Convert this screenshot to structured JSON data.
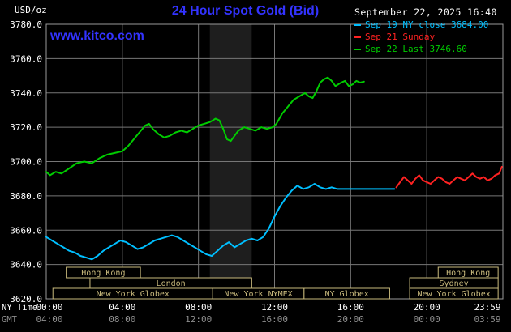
{
  "header": {
    "unit_label": "USD/oz",
    "title": "24 Hour Spot Gold (Bid)",
    "datetime": "September 22, 2025 16:40",
    "watermark": "www.kitco.com"
  },
  "colors": {
    "title_blue": "#3333ff",
    "cyan": "#00bfff",
    "red": "#ff2222",
    "green": "#00cc00",
    "white": "#ffffff",
    "gmt_gray": "#8f8f8f",
    "grid": "#777777",
    "border": "#9a9a9a",
    "session_tan": "#c9ba7d",
    "band": "#1e1e1e",
    "background": "#000000"
  },
  "legend": {
    "items": [
      {
        "label": "Sep 19 NY close 3684.00",
        "color": "#00bfff"
      },
      {
        "label": "Sep 21 Sunday",
        "color": "#ff2222"
      },
      {
        "label": "Sep 22 Last 3746.60",
        "color": "#00cc00"
      }
    ]
  },
  "chart_data": {
    "type": "line",
    "title": "24 Hour Spot Gold (Bid)",
    "ylabel": "USD/oz",
    "ylim": [
      3620,
      3780
    ],
    "xlim_hours": [
      0,
      24
    ],
    "grid": true,
    "legend_position": "top-right",
    "y_ticks": [
      {
        "value": 3780,
        "label": "3780.0"
      },
      {
        "value": 3760,
        "label": "3760.0"
      },
      {
        "value": 3740,
        "label": "3740.0"
      },
      {
        "value": 3720,
        "label": "3720.0"
      },
      {
        "value": 3700,
        "label": "3700.0"
      },
      {
        "value": 3680,
        "label": "3680.0"
      },
      {
        "value": 3660,
        "label": "3660.0"
      },
      {
        "value": 3640,
        "label": "3640.0"
      },
      {
        "value": 3620,
        "label": "3620.0"
      }
    ],
    "x_gridline_hours": [
      4,
      8,
      12,
      16,
      20
    ],
    "x_axis_rows": [
      {
        "name": "NY Time",
        "color": "#ffffff",
        "ticks": [
          {
            "hour": 0,
            "label": "00:00"
          },
          {
            "hour": 4,
            "label": "04:00"
          },
          {
            "hour": 8,
            "label": "08:00"
          },
          {
            "hour": 12,
            "label": "12:00"
          },
          {
            "hour": 16,
            "label": "16:00"
          },
          {
            "hour": 20,
            "label": "20:00"
          },
          {
            "hour": 23.98,
            "label": "23:59"
          }
        ]
      },
      {
        "name": "GMT",
        "color": "#8f8f8f",
        "ticks": [
          {
            "hour": 0,
            "label": "04:00"
          },
          {
            "hour": 4,
            "label": "08:00"
          },
          {
            "hour": 8,
            "label": "12:00"
          },
          {
            "hour": 12,
            "label": "16:00"
          },
          {
            "hour": 16,
            "label": "20:00"
          },
          {
            "hour": 20,
            "label": "00:00"
          },
          {
            "hour": 23.98,
            "label": "03:59"
          }
        ]
      }
    ],
    "shaded_band": {
      "from_hour": 8.6,
      "to_hour": 10.8,
      "color": "#1e1e1e"
    },
    "series": [
      {
        "id": "sep19-ny-close",
        "name": "Sep 19 NY close 3684.00",
        "color": "#00bfff",
        "points": [
          [
            0,
            3656
          ],
          [
            0.3,
            3654
          ],
          [
            0.6,
            3652
          ],
          [
            0.9,
            3650
          ],
          [
            1.2,
            3648
          ],
          [
            1.5,
            3647
          ],
          [
            1.8,
            3645
          ],
          [
            2.1,
            3644
          ],
          [
            2.4,
            3643
          ],
          [
            2.7,
            3645
          ],
          [
            3,
            3648
          ],
          [
            3.3,
            3650
          ],
          [
            3.6,
            3652
          ],
          [
            3.9,
            3654
          ],
          [
            4.2,
            3653
          ],
          [
            4.5,
            3651
          ],
          [
            4.8,
            3649
          ],
          [
            5.1,
            3650
          ],
          [
            5.4,
            3652
          ],
          [
            5.7,
            3654
          ],
          [
            6,
            3655
          ],
          [
            6.3,
            3656
          ],
          [
            6.6,
            3657
          ],
          [
            6.9,
            3656
          ],
          [
            7.2,
            3654
          ],
          [
            7.5,
            3652
          ],
          [
            7.8,
            3650
          ],
          [
            8.1,
            3648
          ],
          [
            8.4,
            3646
          ],
          [
            8.7,
            3645
          ],
          [
            9,
            3648
          ],
          [
            9.3,
            3651
          ],
          [
            9.6,
            3653
          ],
          [
            9.9,
            3650
          ],
          [
            10.2,
            3652
          ],
          [
            10.5,
            3654
          ],
          [
            10.8,
            3655
          ],
          [
            11.1,
            3654
          ],
          [
            11.4,
            3656
          ],
          [
            11.7,
            3661
          ],
          [
            12,
            3668
          ],
          [
            12.3,
            3674
          ],
          [
            12.6,
            3679
          ],
          [
            12.9,
            3683
          ],
          [
            13.2,
            3686
          ],
          [
            13.5,
            3684
          ],
          [
            13.8,
            3685
          ],
          [
            14.1,
            3687
          ],
          [
            14.4,
            3685
          ],
          [
            14.7,
            3684
          ],
          [
            15,
            3685
          ],
          [
            15.3,
            3684
          ],
          [
            16,
            3684
          ],
          [
            17,
            3684
          ],
          [
            18.3,
            3684
          ]
        ]
      },
      {
        "id": "sep21-sunday",
        "name": "Sep 21 Sunday",
        "color": "#ff2222",
        "points": [
          [
            18.4,
            3685
          ],
          [
            18.6,
            3688
          ],
          [
            18.8,
            3691
          ],
          [
            19,
            3689
          ],
          [
            19.2,
            3687
          ],
          [
            19.4,
            3690
          ],
          [
            19.6,
            3692
          ],
          [
            19.8,
            3689
          ],
          [
            20,
            3688
          ],
          [
            20.2,
            3687
          ],
          [
            20.4,
            3689
          ],
          [
            20.6,
            3691
          ],
          [
            20.8,
            3690
          ],
          [
            21,
            3688
          ],
          [
            21.2,
            3687
          ],
          [
            21.4,
            3689
          ],
          [
            21.6,
            3691
          ],
          [
            21.8,
            3690
          ],
          [
            22,
            3689
          ],
          [
            22.2,
            3691
          ],
          [
            22.4,
            3693
          ],
          [
            22.6,
            3691
          ],
          [
            22.8,
            3690
          ],
          [
            23,
            3691
          ],
          [
            23.2,
            3689
          ],
          [
            23.4,
            3690
          ],
          [
            23.6,
            3692
          ],
          [
            23.8,
            3693
          ],
          [
            23.95,
            3697
          ]
        ]
      },
      {
        "id": "sep22-last",
        "name": "Sep 22 Last 3746.60",
        "color": "#00cc00",
        "points": [
          [
            0,
            3694
          ],
          [
            0.2,
            3692
          ],
          [
            0.5,
            3694
          ],
          [
            0.8,
            3693
          ],
          [
            1.2,
            3696
          ],
          [
            1.6,
            3699
          ],
          [
            2,
            3700
          ],
          [
            2.4,
            3699
          ],
          [
            2.8,
            3702
          ],
          [
            3.2,
            3704
          ],
          [
            3.6,
            3705
          ],
          [
            4,
            3706
          ],
          [
            4.3,
            3709
          ],
          [
            4.6,
            3713
          ],
          [
            4.9,
            3717
          ],
          [
            5.2,
            3721
          ],
          [
            5.4,
            3722
          ],
          [
            5.6,
            3719
          ],
          [
            5.9,
            3716
          ],
          [
            6.2,
            3714
          ],
          [
            6.5,
            3715
          ],
          [
            6.8,
            3717
          ],
          [
            7.1,
            3718
          ],
          [
            7.4,
            3717
          ],
          [
            7.7,
            3719
          ],
          [
            8,
            3721
          ],
          [
            8.3,
            3722
          ],
          [
            8.6,
            3723
          ],
          [
            8.9,
            3725
          ],
          [
            9.1,
            3724
          ],
          [
            9.3,
            3719
          ],
          [
            9.5,
            3713
          ],
          [
            9.7,
            3712
          ],
          [
            9.9,
            3715
          ],
          [
            10.1,
            3718
          ],
          [
            10.4,
            3720
          ],
          [
            10.7,
            3719
          ],
          [
            11,
            3718
          ],
          [
            11.3,
            3720
          ],
          [
            11.6,
            3719
          ],
          [
            11.9,
            3720
          ],
          [
            12.1,
            3722
          ],
          [
            12.4,
            3728
          ],
          [
            12.7,
            3732
          ],
          [
            13,
            3736
          ],
          [
            13.3,
            3738
          ],
          [
            13.6,
            3740
          ],
          [
            13.8,
            3738
          ],
          [
            14,
            3737
          ],
          [
            14.2,
            3741
          ],
          [
            14.4,
            3746
          ],
          [
            14.6,
            3748
          ],
          [
            14.8,
            3749
          ],
          [
            15,
            3747
          ],
          [
            15.2,
            3744
          ],
          [
            15.5,
            3746
          ],
          [
            15.7,
            3747
          ],
          [
            15.9,
            3744
          ],
          [
            16.1,
            3745
          ],
          [
            16.3,
            3747
          ],
          [
            16.5,
            3746
          ],
          [
            16.7,
            3746.6
          ]
        ]
      }
    ],
    "sessions": [
      {
        "label": "Hong Kong",
        "row": 0,
        "from": 1.05,
        "to": 4.95
      },
      {
        "label": "Hong Kong",
        "row": 0,
        "from": 20.6,
        "to": 23.75
      },
      {
        "label": "London",
        "row": 1,
        "from": 2.3,
        "to": 10.8
      },
      {
        "label": "Sydney",
        "row": 1,
        "from": 19.1,
        "to": 23.75
      },
      {
        "label": "New York Globex",
        "row": 2,
        "from": 0.35,
        "to": 8.75
      },
      {
        "label": "New York NYMEX",
        "row": 2,
        "from": 8.75,
        "to": 13.55
      },
      {
        "label": "NY Globex",
        "row": 2,
        "from": 13.55,
        "to": 18.05
      },
      {
        "label": "New York Globex",
        "row": 2,
        "from": 19.1,
        "to": 23.75
      }
    ]
  }
}
